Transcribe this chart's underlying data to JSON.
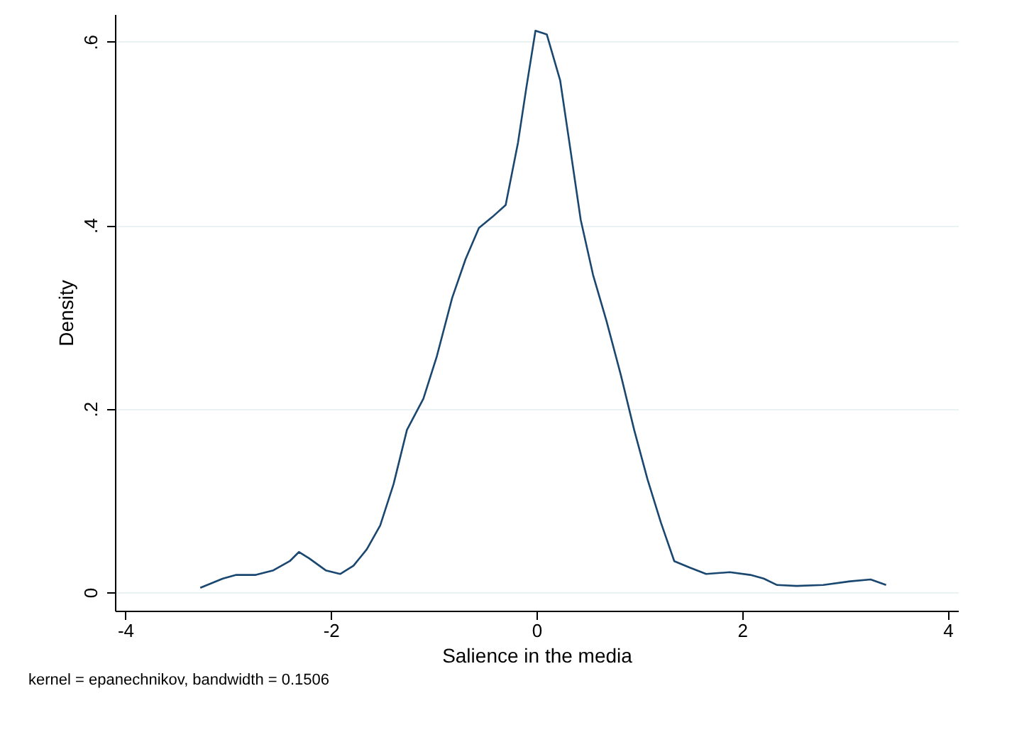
{
  "chart_data": {
    "type": "line",
    "xlabel": "Salience in the media",
    "ylabel": "Density",
    "annotations": [
      "kernel = epanechnikov, bandwidth = 0.1506"
    ],
    "xlim": [
      -4.1,
      4.1
    ],
    "xticks": [
      -4,
      -2,
      0,
      2,
      4
    ],
    "ylim": [
      -0.02,
      0.63
    ],
    "yticks": [
      {
        "value": 0,
        "label": "0"
      },
      {
        "value": 0.2,
        "label": ".2"
      },
      {
        "value": 0.4,
        "label": ".4"
      },
      {
        "value": 0.6,
        "label": ".6"
      }
    ],
    "grid": "y",
    "marker": "none",
    "line_style": "solid",
    "series": [
      {
        "color": "#1a476f",
        "x": [
          -3.27,
          -3.05,
          -2.92,
          -2.73,
          -2.56,
          -2.4,
          -2.31,
          -2.21,
          -2.05,
          -1.91,
          -1.78,
          -1.65,
          -1.52,
          -1.39,
          -1.26,
          -1.1,
          -0.97,
          -0.82,
          -0.69,
          -0.56,
          -0.43,
          -0.3,
          -0.18,
          -0.1,
          -0.01,
          0.1,
          0.23,
          0.32,
          0.43,
          0.55,
          0.68,
          0.82,
          0.95,
          1.08,
          1.21,
          1.34,
          1.49,
          1.65,
          1.88,
          2.08,
          2.21,
          2.34,
          2.53,
          2.79,
          3.05,
          3.25,
          3.4
        ],
        "values": [
          0.005,
          0.015,
          0.019,
          0.019,
          0.024,
          0.034,
          0.044,
          0.037,
          0.024,
          0.02,
          0.029,
          0.047,
          0.073,
          0.118,
          0.177,
          0.211,
          0.257,
          0.321,
          0.363,
          0.397,
          0.409,
          0.422,
          0.49,
          0.549,
          0.612,
          0.608,
          0.558,
          0.49,
          0.406,
          0.346,
          0.296,
          0.237,
          0.177,
          0.123,
          0.076,
          0.034,
          0.027,
          0.02,
          0.022,
          0.019,
          0.015,
          0.008,
          0.007,
          0.008,
          0.012,
          0.014,
          0.008
        ]
      }
    ]
  }
}
